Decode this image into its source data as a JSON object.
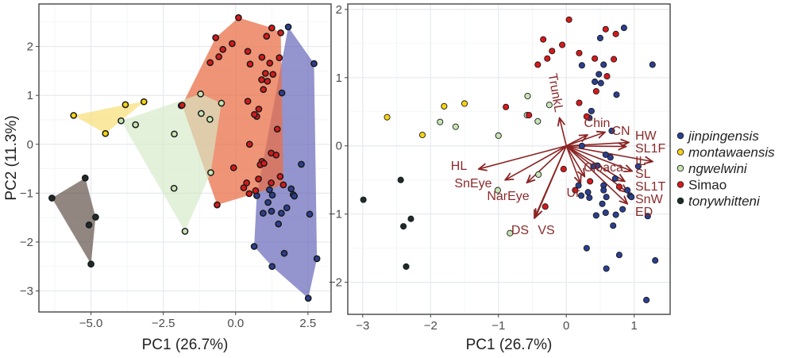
{
  "groups": [
    {
      "name": "jinpingensis",
      "italic": true,
      "color": "#2b3f8f",
      "hull": "#6b6bbb"
    },
    {
      "name": "montawaensis",
      "italic": true,
      "color": "#f5d312",
      "hull": "#f8dc6a"
    },
    {
      "name": "ngwelwini",
      "italic": true,
      "color": "#c8e4b5",
      "hull": "#d4eac6"
    },
    {
      "name": "Simao",
      "italic": false,
      "color": "#d7191c",
      "hull": "#ea7048"
    },
    {
      "name": "tonywhitteni",
      "italic": true,
      "color": "#1d2b2b",
      "hull": "#56463c"
    }
  ],
  "chart_data": [
    {
      "type": "scatter",
      "xlabel": "PC1 (26.7%)",
      "ylabel": "PC2 (11.3%)",
      "xlim": [
        -6.8,
        3.3
      ],
      "ylim": [
        -3.43,
        2.87
      ],
      "xticks": [
        -5.0,
        -2.5,
        0.0,
        2.5
      ],
      "xtick_labels": [
        "−5.0",
        "−2.5",
        "0.0",
        "2.5"
      ],
      "yticks": [
        -3,
        -2,
        -1,
        0,
        1,
        2
      ],
      "ytick_labels": [
        "−3",
        "−2",
        "−1",
        "0",
        "1",
        "2"
      ],
      "grid": true,
      "convex_hulls": true,
      "series": [
        {
          "name": "jinpingensis",
          "points": [
            [
              1.82,
              2.4
            ],
            [
              2.71,
              1.65
            ],
            [
              1.6,
              1.05
            ],
            [
              2.27,
              -0.41
            ],
            [
              1.92,
              -0.91
            ],
            [
              1.99,
              -1.03
            ],
            [
              2.03,
              -1.06
            ],
            [
              0.73,
              -1.05
            ],
            [
              1.27,
              -1.04
            ],
            [
              1.17,
              -0.93
            ],
            [
              1.12,
              -1.19
            ],
            [
              1.24,
              -1.37
            ],
            [
              0.95,
              -1.41
            ],
            [
              1.58,
              -1.41
            ],
            [
              1.77,
              -1.3
            ],
            [
              1.48,
              -1.63
            ],
            [
              2.56,
              -1.43
            ],
            [
              0.64,
              -2.09
            ],
            [
              1.68,
              -2.23
            ],
            [
              1.26,
              -2.5
            ],
            [
              2.81,
              -2.34
            ],
            [
              2.51,
              -3.15
            ]
          ]
        },
        {
          "name": "montawaensis",
          "points": [
            [
              -5.6,
              0.59
            ],
            [
              -3.81,
              0.81
            ],
            [
              -3.17,
              0.87
            ],
            [
              -4.5,
              0.22
            ]
          ]
        },
        {
          "name": "ngwelwini",
          "points": [
            [
              -3.96,
              0.48
            ],
            [
              -3.46,
              0.4
            ],
            [
              -1.88,
              0.79
            ],
            [
              -1.21,
              1.03
            ],
            [
              -0.49,
              0.84
            ],
            [
              -1.19,
              0.63
            ],
            [
              -0.89,
              0.51
            ],
            [
              -2.12,
              0.21
            ],
            [
              -0.86,
              -0.58
            ],
            [
              -2.13,
              -0.9
            ],
            [
              -1.75,
              -1.78
            ]
          ]
        },
        {
          "name": "Simao",
          "points": [
            [
              0.1,
              2.59
            ],
            [
              -0.69,
              2.18
            ],
            [
              -0.44,
              1.94
            ],
            [
              -0.58,
              1.79
            ],
            [
              -0.88,
              1.67
            ],
            [
              -0.12,
              2.06
            ],
            [
              0.42,
              1.9
            ],
            [
              1.25,
              2.38
            ],
            [
              1.07,
              2.21
            ],
            [
              1.56,
              2.28
            ],
            [
              0.5,
              1.64
            ],
            [
              0.91,
              1.78
            ],
            [
              1.18,
              1.66
            ],
            [
              1.51,
              1.77
            ],
            [
              1.03,
              1.45
            ],
            [
              1.29,
              1.43
            ],
            [
              0.9,
              1.32
            ],
            [
              1.1,
              1.29
            ],
            [
              0.96,
              1.12
            ],
            [
              0.42,
              0.88
            ],
            [
              0.8,
              0.72
            ],
            [
              0.73,
              0.57
            ],
            [
              0.65,
              0.61
            ],
            [
              1.44,
              0.31
            ],
            [
              0.48,
              0.0
            ],
            [
              1.23,
              -0.18
            ],
            [
              1.4,
              -0.22
            ],
            [
              0.91,
              -0.35
            ],
            [
              0.85,
              -0.42
            ],
            [
              0.98,
              -0.39
            ],
            [
              -0.07,
              -0.48
            ],
            [
              1.54,
              -0.66
            ],
            [
              0.79,
              -0.71
            ],
            [
              1.23,
              -0.79
            ],
            [
              0.38,
              -0.79
            ],
            [
              0.28,
              -0.89
            ],
            [
              0.47,
              -1.01
            ],
            [
              0.69,
              -0.95
            ],
            [
              -0.64,
              -1.24
            ],
            [
              1.65,
              -0.83
            ],
            [
              -1.85,
              0.8
            ]
          ]
        },
        {
          "name": "tonywhitteni",
          "points": [
            [
              -6.35,
              -1.1
            ],
            [
              -5.2,
              -0.69
            ],
            [
              -4.84,
              -1.49
            ],
            [
              -5.07,
              -1.65
            ],
            [
              -5.0,
              -2.45
            ]
          ]
        }
      ]
    },
    {
      "type": "scatter",
      "subtype": "biplot",
      "xlabel": "PC1 (26.7%)",
      "xlim": [
        -3.22,
        1.53
      ],
      "ylim": [
        -2.47,
        2.08
      ],
      "xticks": [
        -3,
        -2,
        -1,
        0,
        1
      ],
      "xtick_labels": [
        "−3",
        "−2",
        "−1",
        "0",
        "1"
      ],
      "yticks": [
        -2,
        -1,
        0,
        1,
        2
      ],
      "ytick_labels": [
        "−2",
        "−1",
        "0",
        "1",
        "2"
      ],
      "grid": true,
      "series": [
        {
          "name": "jinpingensis",
          "points": [
            [
              0.85,
              1.73
            ],
            [
              0.5,
              1.58
            ],
            [
              1.27,
              1.19
            ],
            [
              0.23,
              1.18
            ],
            [
              0.55,
              1.19
            ],
            [
              0.48,
              1.05
            ],
            [
              0.42,
              0.94
            ],
            [
              0.51,
              0.92
            ],
            [
              0.74,
              0.75
            ],
            [
              0.37,
              0.51
            ],
            [
              0.34,
              0.41
            ],
            [
              0.67,
              0.22
            ],
            [
              0.23,
              0.0
            ],
            [
              0.58,
              -0.13
            ],
            [
              0.65,
              -0.17
            ],
            [
              1.06,
              -0.3
            ],
            [
              0.4,
              -0.3
            ],
            [
              0.46,
              -0.29
            ],
            [
              0.72,
              -0.48
            ],
            [
              0.18,
              -0.58
            ],
            [
              0.55,
              -0.58
            ],
            [
              0.9,
              -0.65
            ],
            [
              0.94,
              -0.73
            ],
            [
              0.96,
              -0.75
            ],
            [
              0.22,
              -0.73
            ],
            [
              0.32,
              -0.68
            ],
            [
              0.34,
              -0.76
            ],
            [
              0.55,
              -0.65
            ],
            [
              0.59,
              -0.75
            ],
            [
              0.53,
              -0.85
            ],
            [
              0.83,
              -0.93
            ],
            [
              0.44,
              -1.02
            ],
            [
              0.58,
              -0.98
            ],
            [
              0.73,
              -1.01
            ],
            [
              0.69,
              -1.17
            ],
            [
              1.2,
              -1.03
            ],
            [
              0.3,
              -1.5
            ],
            [
              0.78,
              -1.6
            ],
            [
              1.31,
              -1.68
            ],
            [
              0.59,
              -1.8
            ],
            [
              1.18,
              -2.26
            ]
          ]
        },
        {
          "name": "montawaensis",
          "points": [
            [
              -2.64,
              0.42
            ],
            [
              -1.8,
              0.58
            ],
            [
              -1.5,
              0.62
            ],
            [
              -2.12,
              0.16
            ]
          ]
        },
        {
          "name": "ngwelwini",
          "points": [
            [
              -1.86,
              0.35
            ],
            [
              -1.63,
              0.28
            ],
            [
              -1.0,
              0.15
            ],
            [
              -0.57,
              0.73
            ],
            [
              -0.58,
              0.45
            ],
            [
              -0.42,
              0.36
            ],
            [
              -0.25,
              0.6
            ],
            [
              -0.41,
              -0.42
            ],
            [
              -1.01,
              -0.65
            ],
            [
              -0.83,
              -1.28
            ]
          ]
        },
        {
          "name": "Simao",
          "points": [
            [
              0.04,
              1.85
            ],
            [
              -0.34,
              1.56
            ],
            [
              -0.21,
              1.39
            ],
            [
              -0.06,
              1.48
            ],
            [
              -0.28,
              1.28
            ],
            [
              -0.42,
              1.19
            ],
            [
              -0.89,
              0.57
            ],
            [
              -0.55,
              0.45
            ],
            [
              0.19,
              1.36
            ],
            [
              0.42,
              1.28
            ],
            [
              0.58,
              1.71
            ],
            [
              0.73,
              1.64
            ],
            [
              0.7,
              1.27
            ],
            [
              0.6,
              1.02
            ],
            [
              0.44,
              0.8
            ],
            [
              0.19,
              0.63
            ],
            [
              0.3,
              0.43
            ],
            [
              -0.04,
              -0.34
            ],
            [
              0.13,
              -0.65
            ],
            [
              0.35,
              -0.52
            ],
            [
              0.78,
              -0.6
            ],
            [
              -0.31,
              -0.89
            ]
          ]
        },
        {
          "name": "tonywhitteni",
          "points": [
            [
              -2.99,
              -0.79
            ],
            [
              -2.44,
              -0.5
            ],
            [
              -2.29,
              -1.07
            ],
            [
              -2.4,
              -1.18
            ],
            [
              -2.36,
              -1.77
            ]
          ]
        }
      ],
      "loadings_color": "#8b2323",
      "loadings": [
        {
          "name": "TrunkL",
          "x": -0.1,
          "y": 0.41
        },
        {
          "name": "Chin",
          "x": 0.31,
          "y": 0.16
        },
        {
          "name": "CN",
          "x": 0.57,
          "y": 0.2
        },
        {
          "name": "HW",
          "x": 0.92,
          "y": 0.05
        },
        {
          "name": "SL1F",
          "x": 0.88,
          "y": -0.01
        },
        {
          "name": "IL",
          "x": 1.27,
          "y": -0.23
        },
        {
          "name": "SL",
          "x": 0.97,
          "y": -0.37
        },
        {
          "name": "SL1T",
          "x": 0.86,
          "y": -0.52
        },
        {
          "name": "SnW",
          "x": 0.9,
          "y": -0.68
        },
        {
          "name": "ED",
          "x": 0.9,
          "y": -0.85
        },
        {
          "name": "Cloaca",
          "x": 0.27,
          "y": -0.45
        },
        {
          "name": "Ur",
          "x": 0.21,
          "y": -0.55
        },
        {
          "name": "DS",
          "x": -0.47,
          "y": -1.06
        },
        {
          "name": "VS",
          "x": -0.45,
          "y": -1.04
        },
        {
          "name": "NarEye",
          "x": -0.58,
          "y": -0.54
        },
        {
          "name": "SnEye",
          "x": -0.9,
          "y": -0.5
        },
        {
          "name": "HL",
          "x": -1.29,
          "y": -0.34
        }
      ]
    }
  ],
  "legend": {
    "placement": "right"
  }
}
